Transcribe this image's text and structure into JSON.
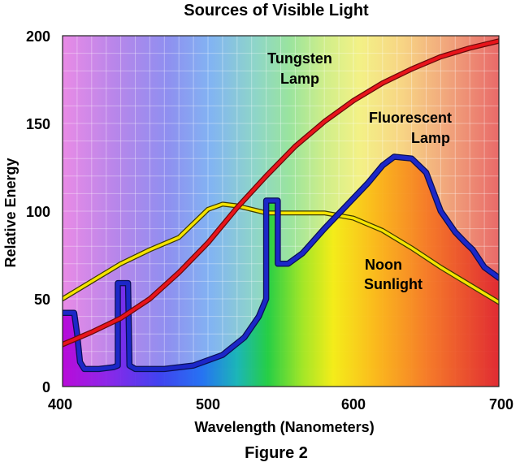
{
  "figure_label": "Figure 2",
  "chart_data": {
    "type": "line",
    "title": "Sources of Visible Light",
    "xlabel": "Wavelength (Nanometers)",
    "ylabel": "Relative Energy",
    "xlim": [
      400,
      700
    ],
    "ylim": [
      0,
      200
    ],
    "x_ticks": [
      400,
      500,
      600,
      700
    ],
    "y_ticks": [
      0,
      50,
      100,
      150,
      200
    ],
    "grid": true,
    "background": "visible-spectrum gradient (violet to red)",
    "series": [
      {
        "name": "Tungsten Lamp",
        "label_lines": [
          "Tungsten",
          "Lamp"
        ],
        "color": "#e8141b",
        "points": [
          [
            400,
            24
          ],
          [
            420,
            31
          ],
          [
            440,
            39
          ],
          [
            460,
            50
          ],
          [
            480,
            65
          ],
          [
            500,
            82
          ],
          [
            520,
            102
          ],
          [
            540,
            120
          ],
          [
            560,
            137
          ],
          [
            580,
            151
          ],
          [
            600,
            163
          ],
          [
            620,
            173
          ],
          [
            640,
            181
          ],
          [
            660,
            188
          ],
          [
            680,
            193
          ],
          [
            700,
            197
          ]
        ]
      },
      {
        "name": "Fluorescent Lamp",
        "label_lines": [
          "Fluorescent",
          "Lamp"
        ],
        "color": "#1c27c8",
        "points": [
          [
            400,
            42
          ],
          [
            408,
            42
          ],
          [
            410,
            30
          ],
          [
            412,
            14
          ],
          [
            415,
            10
          ],
          [
            425,
            10
          ],
          [
            435,
            11
          ],
          [
            438,
            12
          ],
          [
            438,
            59
          ],
          [
            445,
            59
          ],
          [
            446,
            12
          ],
          [
            450,
            10
          ],
          [
            470,
            10
          ],
          [
            490,
            12
          ],
          [
            510,
            18
          ],
          [
            525,
            28
          ],
          [
            535,
            40
          ],
          [
            540,
            50
          ],
          [
            540,
            106
          ],
          [
            548,
            106
          ],
          [
            548,
            70
          ],
          [
            555,
            70
          ],
          [
            565,
            76
          ],
          [
            580,
            90
          ],
          [
            595,
            103
          ],
          [
            610,
            116
          ],
          [
            620,
            126
          ],
          [
            628,
            131
          ],
          [
            640,
            130
          ],
          [
            650,
            122
          ],
          [
            660,
            100
          ],
          [
            670,
            88
          ],
          [
            677,
            82
          ],
          [
            682,
            78
          ],
          [
            690,
            68
          ],
          [
            700,
            62
          ]
        ]
      },
      {
        "name": "Noon Sunlight",
        "label_lines": [
          "Noon",
          "Sunlight"
        ],
        "color": "#f5e400",
        "points": [
          [
            400,
            50
          ],
          [
            420,
            60
          ],
          [
            440,
            70
          ],
          [
            460,
            78
          ],
          [
            480,
            85
          ],
          [
            490,
            93
          ],
          [
            500,
            101
          ],
          [
            510,
            104
          ],
          [
            520,
            103
          ],
          [
            530,
            101
          ],
          [
            540,
            99
          ],
          [
            560,
            99
          ],
          [
            580,
            99
          ],
          [
            600,
            96
          ],
          [
            620,
            89
          ],
          [
            640,
            79
          ],
          [
            660,
            68
          ],
          [
            680,
            58
          ],
          [
            700,
            48
          ]
        ]
      }
    ]
  }
}
